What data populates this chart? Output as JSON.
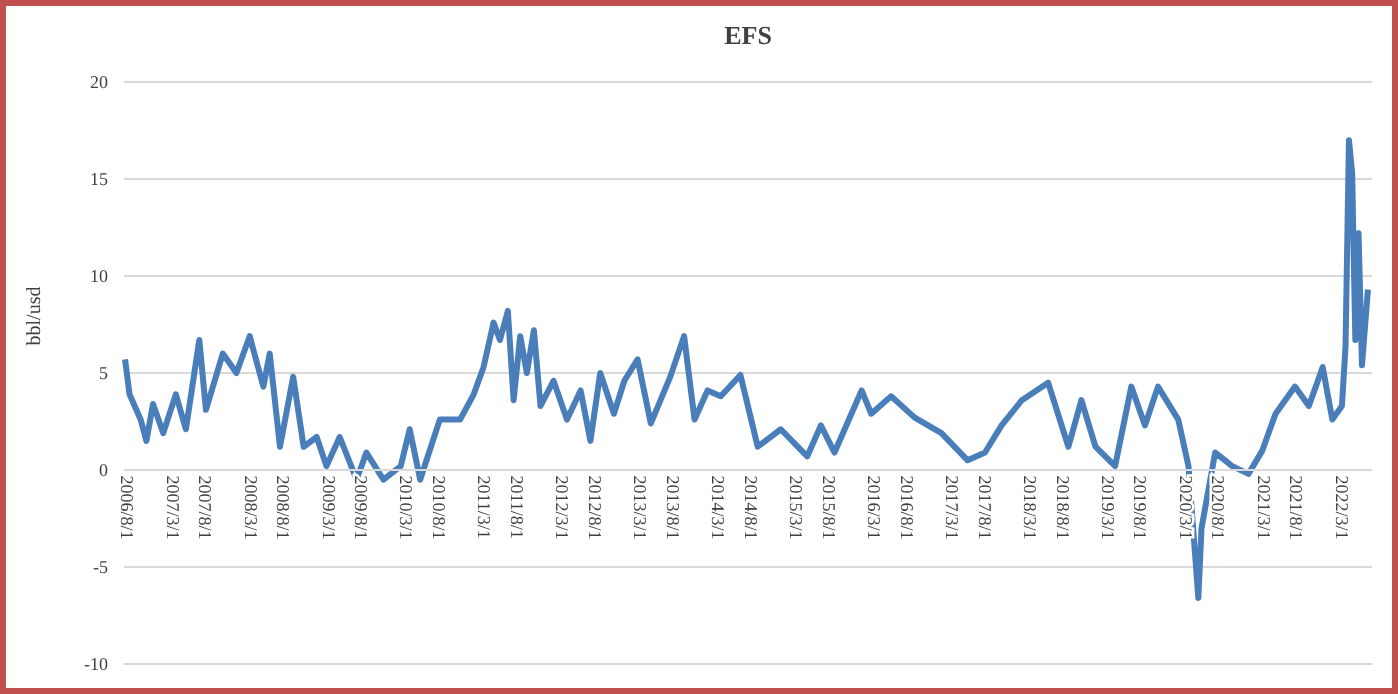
{
  "chart_data": {
    "type": "line",
    "title": "EFS",
    "ylabel": "bbl/usd",
    "grid": "y",
    "xlim": [
      "2006-07-15",
      "2022-07-20"
    ],
    "ylim": [
      -10,
      20
    ],
    "yticks": [
      -10,
      -5,
      0,
      5,
      10,
      15,
      20
    ],
    "xticks": [
      {
        "value": "2006-08-01",
        "label": "2006/8/1"
      },
      {
        "value": "2007-03-01",
        "label": "2007/3/1"
      },
      {
        "value": "2007-08-01",
        "label": "2007/8/1"
      },
      {
        "value": "2008-03-01",
        "label": "2008/3/1"
      },
      {
        "value": "2008-08-01",
        "label": "2008/8/1"
      },
      {
        "value": "2009-03-01",
        "label": "2009/3/1"
      },
      {
        "value": "2009-08-01",
        "label": "2009/8/1"
      },
      {
        "value": "2010-03-01",
        "label": "2010/3/1"
      },
      {
        "value": "2010-08-01",
        "label": "2010/8/1"
      },
      {
        "value": "2011-03-01",
        "label": "2011/3/1"
      },
      {
        "value": "2011-08-01",
        "label": "2011/8/1"
      },
      {
        "value": "2012-03-01",
        "label": "2012/3/1"
      },
      {
        "value": "2012-08-01",
        "label": "2012/8/1"
      },
      {
        "value": "2013-03-01",
        "label": "2013/3/1"
      },
      {
        "value": "2013-08-01",
        "label": "2013/8/1"
      },
      {
        "value": "2014-03-01",
        "label": "2014/3/1"
      },
      {
        "value": "2014-08-01",
        "label": "2014/8/1"
      },
      {
        "value": "2015-03-01",
        "label": "2015/3/1"
      },
      {
        "value": "2015-08-01",
        "label": "2015/8/1"
      },
      {
        "value": "2016-03-01",
        "label": "2016/3/1"
      },
      {
        "value": "2016-08-01",
        "label": "2016/8/1"
      },
      {
        "value": "2017-03-01",
        "label": "2017/3/1"
      },
      {
        "value": "2017-08-01",
        "label": "2017/8/1"
      },
      {
        "value": "2018-03-01",
        "label": "2018/3/1"
      },
      {
        "value": "2018-08-01",
        "label": "2018/8/1"
      },
      {
        "value": "2019-03-01",
        "label": "2019/3/1"
      },
      {
        "value": "2019-08-01",
        "label": "2019/8/1"
      },
      {
        "value": "2020-03-01",
        "label": "2020/3/1"
      },
      {
        "value": "2020-08-01",
        "label": "2020/8/1"
      },
      {
        "value": "2021-03-01",
        "label": "2021/3/1"
      },
      {
        "value": "2021-08-01",
        "label": "2021/8/1"
      },
      {
        "value": "2022-03-01",
        "label": "2022/3/1"
      }
    ],
    "x": [
      "2006-07-20",
      "2006-08-10",
      "2006-10-01",
      "2006-10-28",
      "2006-11-28",
      "2007-01-15",
      "2007-03-15",
      "2007-05-01",
      "2007-07-03",
      "2007-08-03",
      "2007-10-21",
      "2007-12-24",
      "2008-02-24",
      "2008-04-28",
      "2008-05-28",
      "2008-07-15",
      "2008-09-15",
      "2008-11-03",
      "2009-01-03",
      "2009-02-18",
      "2009-04-21",
      "2009-07-09",
      "2009-08-24",
      "2009-11-12",
      "2010-02-01",
      "2010-03-15",
      "2010-05-03",
      "2010-08-03",
      "2010-11-06",
      "2011-01-09",
      "2011-02-24",
      "2011-04-12",
      "2011-05-12",
      "2011-06-18",
      "2011-07-15",
      "2011-08-15",
      "2011-09-15",
      "2011-10-18",
      "2011-11-18",
      "2012-01-18",
      "2012-03-21",
      "2012-05-24",
      "2012-07-09",
      "2012-08-24",
      "2012-10-27",
      "2012-12-15",
      "2013-02-15",
      "2013-04-18",
      "2013-07-18",
      "2013-09-21",
      "2013-11-09",
      "2014-01-09",
      "2014-03-12",
      "2014-06-12",
      "2014-09-01",
      "2014-12-18",
      "2015-04-21",
      "2015-06-24",
      "2015-08-27",
      "2016-01-01",
      "2016-02-15",
      "2016-05-18",
      "2016-09-06",
      "2017-01-09",
      "2017-05-12",
      "2017-08-01",
      "2017-10-18",
      "2018-01-21",
      "2018-05-24",
      "2018-08-27",
      "2018-10-27",
      "2019-01-01",
      "2019-04-03",
      "2019-06-18",
      "2019-08-21",
      "2019-10-21",
      "2020-01-24",
      "2020-03-12",
      "2020-04-27",
      "2020-05-12",
      "2020-07-15",
      "2020-10-03",
      "2020-12-18",
      "2021-02-21",
      "2021-04-24",
      "2021-07-24",
      "2021-09-27",
      "2021-12-01",
      "2022-01-15",
      "2022-03-01",
      "2022-03-18",
      "2022-04-03",
      "2022-04-18",
      "2022-05-03",
      "2022-05-18",
      "2022-06-03",
      "2022-07-01"
    ],
    "series": [
      {
        "color": "#4a7ebb",
        "values": [
          5.7,
          3.9,
          2.6,
          1.5,
          3.4,
          1.9,
          3.9,
          2.1,
          6.7,
          3.1,
          6.0,
          5.0,
          6.9,
          4.3,
          6.0,
          1.2,
          4.8,
          1.2,
          1.7,
          0.2,
          1.7,
          -0.5,
          0.9,
          -0.5,
          0.2,
          2.1,
          -0.5,
          2.6,
          2.6,
          3.9,
          5.3,
          7.6,
          6.7,
          8.2,
          3.6,
          6.9,
          5.0,
          7.2,
          3.3,
          4.6,
          2.6,
          4.1,
          1.5,
          5.0,
          2.9,
          4.6,
          5.7,
          2.4,
          4.8,
          6.9,
          2.6,
          4.1,
          3.8,
          4.9,
          1.2,
          2.1,
          0.7,
          2.3,
          0.9,
          4.1,
          2.9,
          3.8,
          2.7,
          1.9,
          0.5,
          0.9,
          2.3,
          3.6,
          4.5,
          1.2,
          3.6,
          1.2,
          0.2,
          4.3,
          2.3,
          4.3,
          2.6,
          0.2,
          -6.6,
          -3.0,
          0.9,
          0.2,
          -0.2,
          1.0,
          2.9,
          4.3,
          3.3,
          5.3,
          2.6,
          3.3,
          6.4,
          17.0,
          15.3,
          6.7,
          12.2,
          5.4,
          9.3
        ]
      }
    ]
  }
}
